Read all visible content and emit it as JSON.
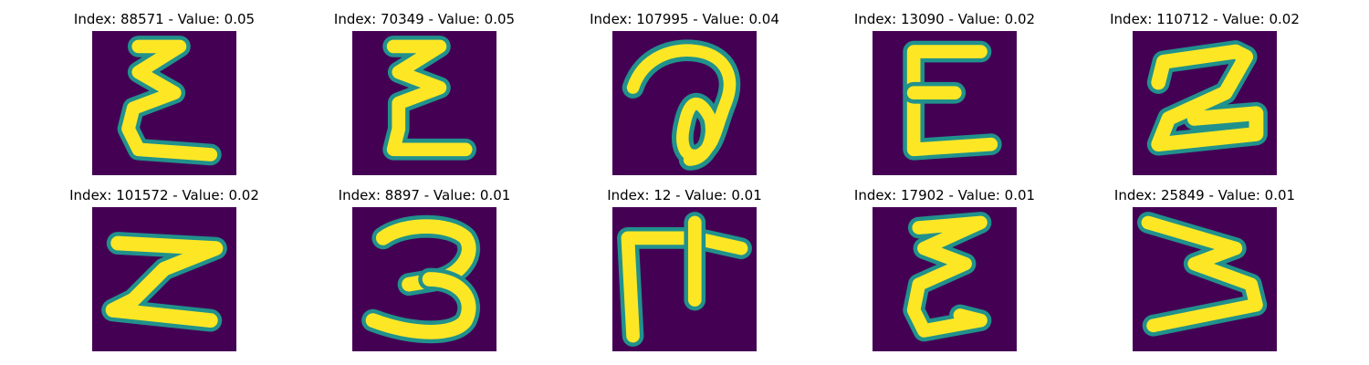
{
  "colors": {
    "background": "#440154",
    "stroke_mid": "#21918c",
    "stroke_core": "#fde725"
  },
  "panels": [
    {
      "title": "Index: 88571 - Value: 0.05",
      "glyph": "epsilon-like stroke"
    },
    {
      "title": "Index: 70349 - Value: 0.05",
      "glyph": "epsilon-like stroke"
    },
    {
      "title": "Index: 107995 - Value: 0.04",
      "glyph": "looped stroke"
    },
    {
      "title": "Index: 13090 - Value: 0.02",
      "glyph": "E-like stroke"
    },
    {
      "title": "Index: 110712 - Value: 0.02",
      "glyph": "2-like stroke"
    },
    {
      "title": "Index: 101572 - Value: 0.02",
      "glyph": "Z-like stroke"
    },
    {
      "title": "Index: 8897 - Value: 0.01",
      "glyph": "3-like stroke"
    },
    {
      "title": "Index: 12 - Value: 0.01",
      "glyph": "F-like stroke"
    },
    {
      "title": "Index: 17902 - Value: 0.01",
      "glyph": "epsilon-like stroke"
    },
    {
      "title": "Index: 25849 - Value: 0.01",
      "glyph": "zigzag stroke"
    }
  ]
}
